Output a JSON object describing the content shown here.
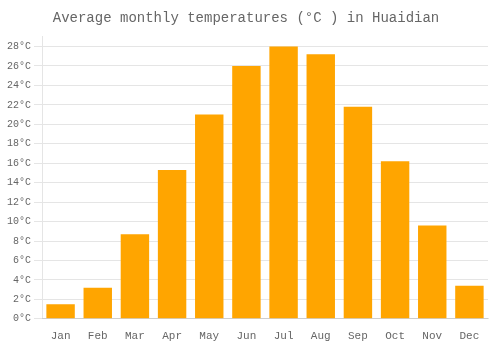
{
  "chart_data": {
    "type": "bar",
    "title": "Average monthly temperatures (°C ) in Huaidian",
    "categories": [
      "Jan",
      "Feb",
      "Mar",
      "Apr",
      "May",
      "Jun",
      "Jul",
      "Aug",
      "Sep",
      "Oct",
      "Nov",
      "Dec"
    ],
    "values": [
      1.5,
      3.2,
      8.7,
      15.3,
      21.0,
      26.0,
      28.0,
      27.2,
      21.8,
      16.2,
      9.6,
      3.4
    ],
    "color": "#FFA500",
    "ylim": [
      0,
      29
    ],
    "yticks": [
      {
        "value": 0,
        "label": "0°C"
      },
      {
        "value": 2,
        "label": "2°C"
      },
      {
        "value": 4,
        "label": "4°C"
      },
      {
        "value": 6,
        "label": "6°C"
      },
      {
        "value": 8,
        "label": "8°C"
      },
      {
        "value": 10,
        "label": "10°C"
      },
      {
        "value": 12,
        "label": "12°C"
      },
      {
        "value": 14,
        "label": "14°C"
      },
      {
        "value": 16,
        "label": "16°C"
      },
      {
        "value": 18,
        "label": "18°C"
      },
      {
        "value": 20,
        "label": "20°C"
      },
      {
        "value": 22,
        "label": "22°C"
      },
      {
        "value": 24,
        "label": "24°C"
      },
      {
        "value": 26,
        "label": "26°C"
      },
      {
        "value": 28,
        "label": "28°C"
      }
    ],
    "grid": true
  }
}
